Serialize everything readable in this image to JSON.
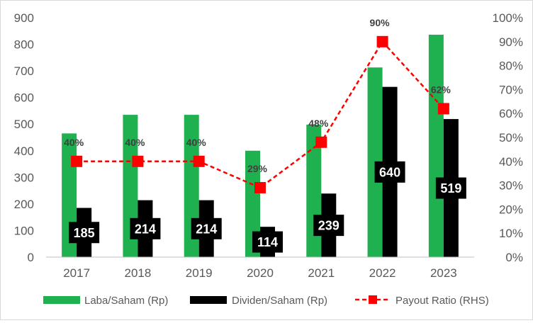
{
  "chart_data": {
    "type": "bar",
    "title": "",
    "categories": [
      "2017",
      "2018",
      "2019",
      "2020",
      "2021",
      "2022",
      "2023"
    ],
    "series": [
      {
        "name": "Laba/Saham (Rp)",
        "kind": "bar",
        "axis": "left",
        "color": "#1fb04f",
        "values": [
          465,
          535,
          535,
          400,
          498,
          713,
          836
        ]
      },
      {
        "name": "Dividen/Saham (Rp)",
        "kind": "bar",
        "axis": "left",
        "color": "#000000",
        "values": [
          185,
          214,
          214,
          114,
          239,
          640,
          519
        ],
        "labels": [
          "185",
          "214",
          "214",
          "114",
          "239",
          "640",
          "519"
        ]
      },
      {
        "name": "Payout Ratio (RHS)",
        "kind": "line",
        "axis": "right",
        "color": "#ff0000",
        "values": [
          40,
          40,
          40,
          29,
          48,
          90,
          62
        ],
        "labels": [
          "40%",
          "40%",
          "40%",
          "29%",
          "48%",
          "90%",
          "62%"
        ]
      }
    ],
    "left_axis": {
      "min": 0,
      "max": 900,
      "ticks": [
        "0",
        "100",
        "200",
        "300",
        "400",
        "500",
        "600",
        "700",
        "800",
        "900"
      ]
    },
    "right_axis": {
      "min": 0,
      "max": 100,
      "ticks": [
        "0%",
        "10%",
        "20%",
        "30%",
        "40%",
        "50%",
        "60%",
        "70%",
        "80%",
        "90%",
        "100%"
      ]
    },
    "legend_position": "bottom"
  }
}
